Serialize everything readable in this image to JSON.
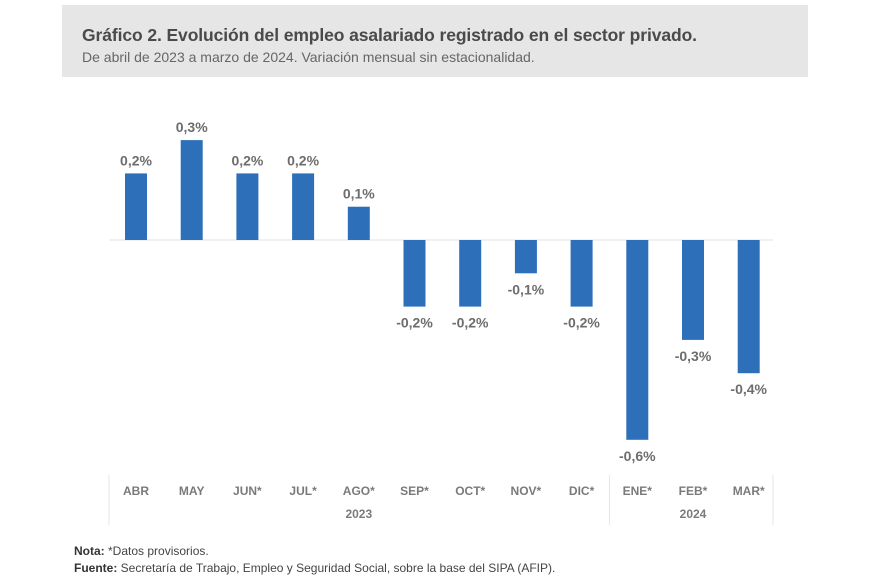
{
  "header": {
    "title": "Gráfico 2. Evolución del empleo asalariado registrado en el sector privado.",
    "subtitle": "De abril de 2023 a marzo de 2024. Variación mensual sin estacionalidad."
  },
  "chart_data": {
    "type": "bar",
    "title": "Gráfico 2. Evolución del empleo asalariado registrado en el sector privado.",
    "subtitle": "De abril de 2023 a marzo de 2024. Variación mensual sin estacionalidad.",
    "xlabel": "",
    "ylabel": "",
    "categories": [
      "ABR",
      "MAY",
      "JUN*",
      "JUL*",
      "AGO*",
      "SEP*",
      "OCT*",
      "NOV*",
      "DIC*",
      "ENE*",
      "FEB*",
      "MAR*"
    ],
    "values": [
      0.2,
      0.3,
      0.2,
      0.2,
      0.1,
      -0.2,
      -0.2,
      -0.1,
      -0.2,
      -0.6,
      -0.3,
      -0.4
    ],
    "data_labels": [
      "0,2%",
      "0,3%",
      "0,2%",
      "0,2%",
      "0,1%",
      "-0,2%",
      "-0,2%",
      "-0,1%",
      "-0,2%",
      "-0,6%",
      "-0,3%",
      "-0,4%"
    ],
    "year_groups": [
      {
        "label": "2023",
        "start": 0,
        "end": 8
      },
      {
        "label": "2024",
        "start": 9,
        "end": 11
      }
    ],
    "ylim": [
      -0.6,
      0.3
    ],
    "grid": false,
    "legend": "none",
    "bar_color": "#2e6fba",
    "label_color": "#6d6d6d"
  },
  "footer": {
    "note_label": "Nota:",
    "note_text": " *Datos provisorios.",
    "source_label": "Fuente:",
    "source_text": " Secretaría de Trabajo, Empleo y Seguridad Social, sobre la base del SIPA (AFIP)."
  }
}
